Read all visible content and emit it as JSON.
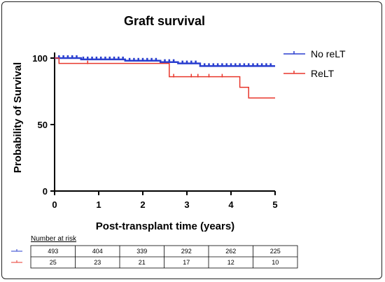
{
  "chart_data": {
    "type": "line",
    "title": "Graft survival",
    "xlabel": "Post-transplant time (years)",
    "ylabel": "Probability of Survival",
    "xlim": [
      0,
      5
    ],
    "ylim": [
      0,
      100
    ],
    "x_ticks": [
      "0",
      "1",
      "2",
      "3",
      "4",
      "5"
    ],
    "y_ticks": [
      "0",
      "50",
      "100"
    ],
    "legend_position": "top-right",
    "series": [
      {
        "name": "No reLT",
        "color": "#2a3fcf",
        "steps": [
          [
            0,
            100
          ],
          [
            0.6,
            99
          ],
          [
            1.6,
            98
          ],
          [
            2.4,
            97
          ],
          [
            2.8,
            96
          ],
          [
            3.3,
            94
          ],
          [
            5,
            94
          ]
        ],
        "censor_x": [
          0.1,
          0.2,
          0.3,
          0.4,
          0.5,
          0.65,
          0.75,
          0.85,
          0.95,
          1.05,
          1.15,
          1.25,
          1.35,
          1.45,
          1.55,
          1.7,
          1.8,
          1.9,
          2.0,
          2.1,
          2.2,
          2.3,
          2.5,
          2.6,
          2.7,
          2.9,
          3.0,
          3.1,
          3.2,
          3.4,
          3.5,
          3.6,
          3.7,
          3.8,
          3.9,
          4.0,
          4.1,
          4.2,
          4.3,
          4.4,
          4.5,
          4.6,
          4.7,
          4.8,
          4.9
        ]
      },
      {
        "name": "ReLT",
        "color": "#e8372c",
        "steps": [
          [
            0,
            100
          ],
          [
            0.1,
            96
          ],
          [
            2.6,
            86
          ],
          [
            4.2,
            78
          ],
          [
            4.4,
            70
          ],
          [
            5,
            70
          ]
        ],
        "censor_x": [
          0.75,
          2.7,
          3.1,
          3.25,
          3.5,
          3.8
        ]
      }
    ]
  },
  "risk_table": {
    "title": "Number at risk",
    "rows": [
      {
        "color": "#2a3fcf",
        "values": [
          "493",
          "404",
          "339",
          "292",
          "262",
          "225"
        ]
      },
      {
        "color": "#e8372c",
        "values": [
          "25",
          "23",
          "21",
          "17",
          "12",
          "10"
        ]
      }
    ]
  }
}
